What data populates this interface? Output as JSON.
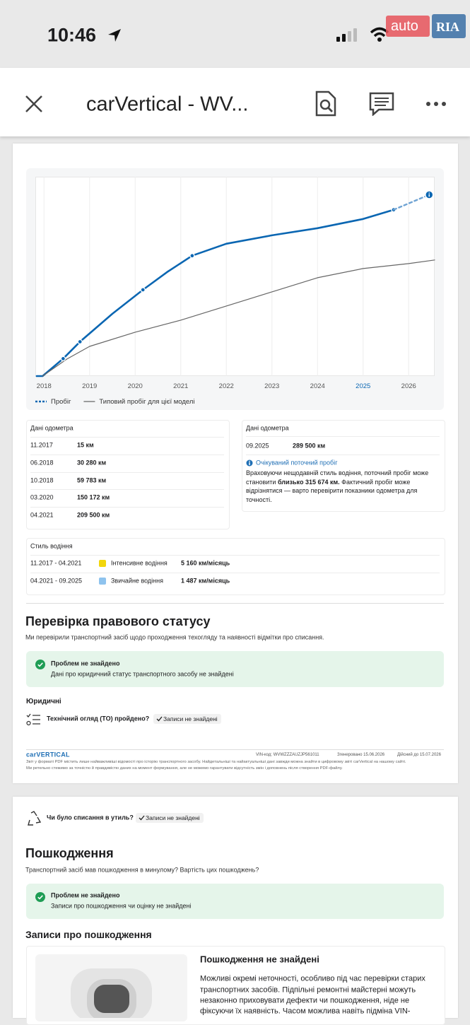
{
  "status_bar": {
    "time": "10:46",
    "watermark": [
      "auto",
      "RIA"
    ]
  },
  "toolbar": {
    "title": "carVertical - WV..."
  },
  "chart_data": {
    "type": "line",
    "xlim": [
      2017.81,
      2026.57
    ],
    "ylim": [
      0,
      347000
    ],
    "xticks": [
      2018,
      2019,
      2020,
      2021,
      2022,
      2023,
      2024,
      2025,
      2026
    ],
    "highlight_tick": 2025,
    "grid": true,
    "series": [
      {
        "name": "Пробіг",
        "color": "#0a66b2",
        "legend_dashed": true,
        "x": [
          2017.84,
          2017.97,
          2018.42,
          2018.79,
          2019.5,
          2020.17,
          2020.7,
          2021.25,
          2022.0,
          2023.0,
          2024.0,
          2025.0,
          2025.67
        ],
        "values": [
          15,
          15,
          30280,
          59783,
          108400,
          150172,
          181000,
          209500,
          230300,
          245000,
          257400,
          273400,
          289500
        ]
      },
      {
        "name": "Типовий пробіг для цієї моделі",
        "color": "#666666",
        "x": [
          2017.97,
          2018.5,
          2019,
          2020,
          2021,
          2022,
          2023,
          2024,
          2025,
          2026,
          2026.57
        ],
        "values": [
          0,
          29500,
          51700,
          76400,
          97300,
          121900,
          146600,
          171200,
          187200,
          195800,
          202000
        ]
      },
      {
        "color": "#0a66b2",
        "marker": true,
        "x": [
          2018.42,
          2018.79,
          2020.17,
          2021.25,
          2025.67
        ],
        "values": [
          30280,
          59783,
          150172,
          209500,
          289500
        ]
      },
      {
        "color": "#6fa3d3",
        "dashed": true,
        "x": [
          2025.67,
          2026.45
        ],
        "values": [
          289500,
          315674
        ]
      }
    ]
  },
  "odometer": {
    "title": "Дані одометра",
    "rows": [
      [
        "11.2017",
        "15 км"
      ],
      [
        "06.2018",
        "30 280 км"
      ],
      [
        "10.2018",
        "59 783 км"
      ],
      [
        "03.2020",
        "150 172 км"
      ],
      [
        "04.2021",
        "209 500 км"
      ]
    ]
  },
  "odometer_current": {
    "title": "Дані одометра",
    "rows": [
      [
        "09.2025",
        "289 500 км"
      ]
    ],
    "expected_title": "Очікуваний поточний пробіг",
    "text": [
      "Враховуючи нещодавній стиль водіння, поточний пробіг може становити ",
      "близько 315 674 км.",
      " Фактичний пробіг може відрізнятися — варто перевірити показники одометра для точності."
    ]
  },
  "driving_style": {
    "title": "Стиль водіння",
    "rows": [
      {
        "period": "11.2017 - 04.2021",
        "color": "#f2d60c",
        "label": "Інтенсивне водіння",
        "value": "5 160 км/місяць"
      },
      {
        "period": "04.2021 - 09.2025",
        "color": "#8ec3ee",
        "label": "Звичайне водіння",
        "value": "1 487 км/місяць"
      }
    ]
  },
  "legal": {
    "title": "Перевірка правового статусу",
    "subtitle": "Ми перевірили транспортний засіб щодо проходження техогляду та наявності відмітки про списання.",
    "status_title": "Проблем не знайдено",
    "status_text": "Дані про юридичний статус транспортного засобу не знайдені",
    "section": "Юридичні",
    "check": "Технічний огляд (ТО) пройдено?",
    "badge": "Записи не знайдені"
  },
  "footer": {
    "logo": "carVERTICAL",
    "vin": "VIN-код: WVWZZZAUZJP561011",
    "generated": "Згенеровано 15.06.2026",
    "valid": "Дійсний до 15.07.2026",
    "notes": [
      "Звіт у форматі PDF містить лише найважливіші відомості про історію транспортного засобу. Найдетальніші та найактуальніші дані завжди можна знайти в цифровому звіті carVertical на нашому сайті.",
      "Ми ретельно стежимо за точністю й правдивістю даних на момент формування, але не можемо гарантувати відсутність змін і доповнень після створення PDF-файлу."
    ]
  },
  "page2": {
    "scrap_check": "Чи було списання в утиль?",
    "scrap_badge": "Записи не знайдені",
    "damage_title": "Пошкодження",
    "damage_subtitle": "Транспортний засіб мав пошкодження в минулому? Вартість цих пошкоджень?",
    "status_title": "Проблем не знайдено",
    "status_text": "Записи про пошкодження чи оцінку не знайдені",
    "records_title": "Записи про пошкодження",
    "card_title": "Пошкодження не знайдені",
    "card_lines": [
      "Можливі окремі неточності, особливо під час перевірки старих",
      "транспортних засобів. Підпільні ремонтні майстерні можуть",
      "незаконно приховувати дефекти чи пошкодження, ніде не",
      "фіксуючи їх наявність. Часом можлива навіть підміна VIN-"
    ]
  }
}
